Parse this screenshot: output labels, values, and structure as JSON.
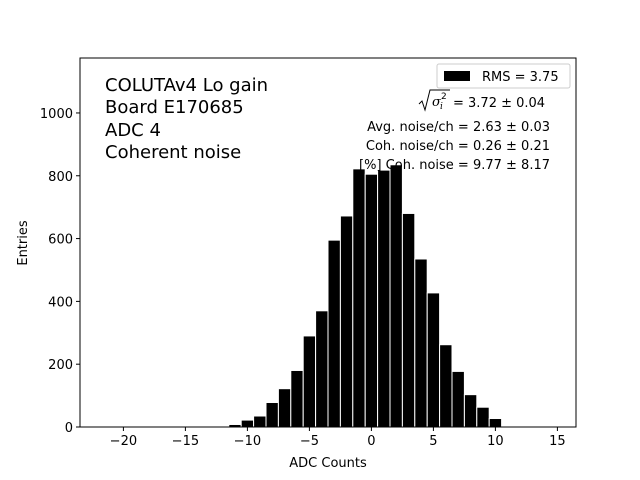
{
  "chart_data": {
    "type": "bar",
    "xlabel": "ADC Counts",
    "ylabel": "Entries",
    "xlim": [
      -23.5,
      16.5
    ],
    "ylim": [
      0,
      1175
    ],
    "xticks": [
      -20,
      -15,
      -10,
      -5,
      0,
      5,
      10,
      15
    ],
    "xtick_labels": [
      "−20",
      "−15",
      "−10",
      "−5",
      "0",
      "5",
      "10",
      "15"
    ],
    "yticks": [
      0,
      200,
      400,
      600,
      800,
      1000
    ],
    "ytick_labels": [
      "0",
      "200",
      "400",
      "600",
      "800",
      "1000"
    ],
    "bin_width": 1,
    "bar_color": "#000000",
    "edge_color": "#ffffff",
    "bins": [
      {
        "x": -13,
        "count": 2
      },
      {
        "x": -12,
        "count": 3
      },
      {
        "x": -11,
        "count": 8
      },
      {
        "x": -10,
        "count": 22
      },
      {
        "x": -9,
        "count": 35
      },
      {
        "x": -8,
        "count": 78
      },
      {
        "x": -7,
        "count": 122
      },
      {
        "x": -6,
        "count": 180
      },
      {
        "x": -5,
        "count": 290
      },
      {
        "x": -4,
        "count": 370
      },
      {
        "x": -3,
        "count": 595
      },
      {
        "x": -2,
        "count": 672
      },
      {
        "x": -1,
        "count": 822
      },
      {
        "x": 0,
        "count": 805
      },
      {
        "x": 1,
        "count": 818
      },
      {
        "x": 2,
        "count": 835
      },
      {
        "x": 3,
        "count": 680
      },
      {
        "x": 4,
        "count": 535
      },
      {
        "x": 5,
        "count": 427
      },
      {
        "x": 6,
        "count": 262
      },
      {
        "x": 7,
        "count": 177
      },
      {
        "x": 8,
        "count": 103
      },
      {
        "x": 9,
        "count": 63
      },
      {
        "x": 10,
        "count": 27
      }
    ],
    "legend": {
      "label": "RMS = 3.75",
      "placement": "top-right"
    },
    "annotations": [
      "COLUTAv4 Lo gain",
      "Board E170685",
      "ADC 4",
      "Coherent noise"
    ],
    "stats": {
      "sigma_value": "= 3.72 ± 0.04",
      "avg_noise": "Avg. noise/ch = 2.63 ± 0.03",
      "coh_noise": "Coh. noise/ch = 0.26 ± 0.21",
      "pct_coh_noise": "[%] Coh. noise = 9.77 ± 8.17"
    }
  }
}
